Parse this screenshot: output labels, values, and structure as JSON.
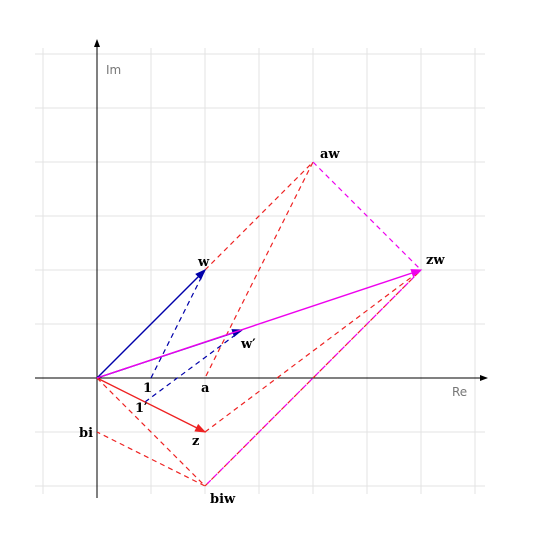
{
  "axes": {
    "real": "Re",
    "imaginary": "Im"
  },
  "labels": {
    "w": "w",
    "w_prime": "w′",
    "aw": "aw",
    "zw": "zw",
    "z": "z",
    "bi": "bi",
    "biw": "biw",
    "one": "1",
    "one_prime": "1′",
    "a": "a"
  }
}
